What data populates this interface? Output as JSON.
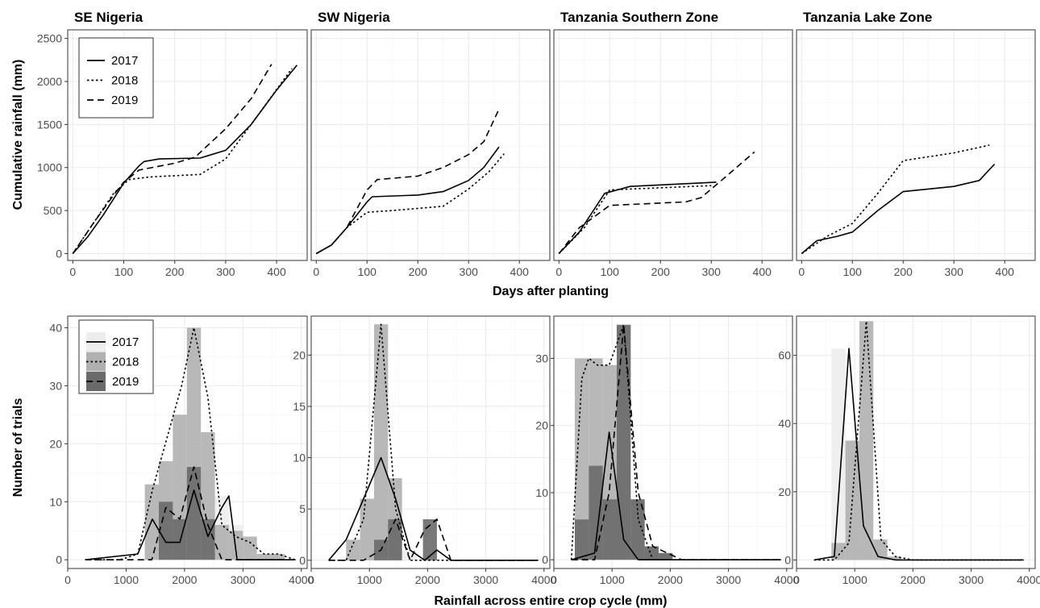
{
  "axis_labels": {
    "top_y": "Cumulative rainfall (mm)",
    "top_x": "Days after planting",
    "bottom_y": "Number of trials",
    "bottom_x": "Rainfall across entire crop cycle (mm)"
  },
  "legend": {
    "top": [
      "2017",
      "2018",
      "2019"
    ],
    "bottom": [
      "2017",
      "2018",
      "2019"
    ]
  },
  "colors": {
    "hist_2017": "#ededed",
    "hist_2018": "#b0b0b0",
    "hist_2019": "#6a6a6a",
    "grid": "#ebebeb",
    "panel_border": "#333333",
    "line": "#000000"
  },
  "chart_data": [
    {
      "panel": "SE Nigeria",
      "type": "line",
      "title": "SE Nigeria",
      "xlabel": "Days after planting",
      "ylabel": "Cumulative rainfall (mm)",
      "xlim": [
        -10,
        460
      ],
      "ylim": [
        -80,
        2600
      ],
      "xticks": [
        0,
        100,
        200,
        300,
        400
      ],
      "yticks": [
        0,
        500,
        1000,
        1500,
        2000,
        2500
      ],
      "grid": true,
      "legend_position": "top-left",
      "series": [
        {
          "name": "2017",
          "style": "solid",
          "x": [
            0,
            30,
            60,
            100,
            130,
            140,
            170,
            250,
            300,
            350,
            400,
            440
          ],
          "y": [
            0,
            200,
            450,
            820,
            1020,
            1070,
            1100,
            1110,
            1200,
            1500,
            1900,
            2190
          ]
        },
        {
          "name": "2018",
          "style": "dotted",
          "x": [
            0,
            40,
            80,
            110,
            150,
            250,
            300,
            350,
            430
          ],
          "y": [
            0,
            350,
            700,
            860,
            890,
            920,
            1100,
            1500,
            2150
          ]
        },
        {
          "name": "2019",
          "style": "dashed",
          "x": [
            0,
            40,
            80,
            100,
            130,
            200,
            240,
            300,
            350,
            390
          ],
          "y": [
            0,
            350,
            680,
            830,
            970,
            1050,
            1120,
            1450,
            1800,
            2200
          ]
        }
      ]
    },
    {
      "panel": "SW Nigeria",
      "type": "line",
      "title": "SW Nigeria",
      "xlim": [
        -10,
        460
      ],
      "ylim": [
        -80,
        2600
      ],
      "xticks": [
        0,
        100,
        200,
        300,
        400
      ],
      "yticks": [
        0,
        500,
        1000,
        1500,
        2000,
        2500
      ],
      "grid": true,
      "series": [
        {
          "name": "2017",
          "style": "solid",
          "x": [
            0,
            30,
            60,
            100,
            110,
            200,
            250,
            300,
            330,
            360
          ],
          "y": [
            0,
            100,
            300,
            600,
            660,
            680,
            720,
            850,
            1000,
            1240
          ]
        },
        {
          "name": "2018",
          "style": "dotted",
          "x": [
            0,
            30,
            60,
            100,
            150,
            250,
            300,
            340,
            370
          ],
          "y": [
            0,
            100,
            300,
            480,
            500,
            550,
            750,
            950,
            1160
          ]
        },
        {
          "name": "2019",
          "style": "dashed",
          "x": [
            0,
            30,
            60,
            100,
            120,
            200,
            250,
            300,
            330,
            360
          ],
          "y": [
            0,
            100,
            300,
            740,
            860,
            900,
            1000,
            1150,
            1300,
            1680
          ]
        }
      ]
    },
    {
      "panel": "Tanzania Southern Zone",
      "type": "line",
      "title": "Tanzania Southern Zone",
      "xlim": [
        -10,
        460
      ],
      "ylim": [
        -80,
        2600
      ],
      "xticks": [
        0,
        100,
        200,
        300,
        400
      ],
      "yticks": [
        0,
        500,
        1000,
        1500,
        2000,
        2500
      ],
      "grid": true,
      "series": [
        {
          "name": "2017",
          "style": "solid",
          "x": [
            0,
            40,
            90,
            140,
            310
          ],
          "y": [
            0,
            250,
            700,
            780,
            830
          ]
        },
        {
          "name": "2018",
          "style": "dotted",
          "x": [
            0,
            50,
            100,
            300
          ],
          "y": [
            0,
            300,
            740,
            790
          ]
        },
        {
          "name": "2019",
          "style": "dashed",
          "x": [
            0,
            40,
            100,
            250,
            280,
            320,
            385
          ],
          "y": [
            0,
            300,
            560,
            600,
            650,
            850,
            1180
          ]
        }
      ]
    },
    {
      "panel": "Tanzania Lake Zone",
      "type": "line",
      "title": "Tanzania Lake Zone",
      "xlim": [
        -10,
        460
      ],
      "ylim": [
        -80,
        2600
      ],
      "xticks": [
        0,
        100,
        200,
        300,
        400
      ],
      "yticks": [
        0,
        500,
        1000,
        1500,
        2000,
        2500
      ],
      "grid": true,
      "series": [
        {
          "name": "2017",
          "style": "solid",
          "x": [
            0,
            30,
            70,
            100,
            150,
            200,
            300,
            350,
            380
          ],
          "y": [
            0,
            150,
            200,
            250,
            500,
            720,
            780,
            850,
            1040
          ]
        },
        {
          "name": "2018",
          "style": "dotted",
          "x": [
            0,
            50,
            100,
            150,
            200,
            300,
            370
          ],
          "y": [
            0,
            200,
            350,
            700,
            1080,
            1170,
            1260
          ]
        }
      ]
    },
    {
      "panel": "SE Nigeria",
      "type": "bar",
      "xlabel": "Rainfall across entire crop cycle (mm)",
      "ylabel": "Number of trials",
      "xlim": [
        0,
        4100
      ],
      "ylim": [
        -1.5,
        42
      ],
      "xticks": [
        0,
        1000,
        2000,
        3000,
        4000
      ],
      "yticks": [
        0,
        10,
        20,
        30,
        40
      ],
      "grid": true,
      "legend_position": "top-left",
      "bin_width": 240,
      "series": [
        {
          "name": "2017",
          "bins": [
            1440,
            1680,
            1920,
            2160,
            2400,
            2640,
            2880
          ],
          "values": [
            7,
            10,
            2,
            12,
            4,
            11,
            6
          ]
        },
        {
          "name": "2018",
          "bins": [
            1440,
            1680,
            1920,
            2160,
            2400,
            2640,
            2880,
            3120,
            3360,
            3600
          ],
          "values": [
            13,
            17,
            25,
            40,
            22,
            6,
            5,
            4,
            1,
            1
          ]
        },
        {
          "name": "2019",
          "bins": [
            1680,
            1920,
            2160,
            2400
          ],
          "values": [
            10,
            7,
            16,
            7
          ]
        }
      ],
      "lines": [
        {
          "name": "2017",
          "style": "solid",
          "x": [
            300,
            1200,
            1450,
            1680,
            1920,
            2160,
            2400,
            2640,
            2760,
            2900,
            3300,
            3900
          ],
          "y": [
            0,
            1,
            7,
            3,
            3,
            12,
            4,
            9,
            11,
            0,
            0,
            0
          ]
        },
        {
          "name": "2018",
          "style": "dotted",
          "x": [
            300,
            900,
            1200,
            1450,
            1700,
            1950,
            2160,
            2400,
            2640,
            2880,
            3120,
            3360,
            3600,
            3900
          ],
          "y": [
            0,
            0,
            1,
            12,
            21,
            30,
            40,
            28,
            6,
            4,
            3,
            1,
            1,
            0
          ]
        },
        {
          "name": "2019",
          "style": "dashed",
          "x": [
            300,
            1200,
            1440,
            1680,
            1920,
            2160,
            2400,
            2640,
            2880,
            3900
          ],
          "y": [
            0,
            0,
            0,
            9,
            7,
            16,
            6,
            0,
            0,
            0
          ]
        }
      ]
    },
    {
      "panel": "SW Nigeria",
      "type": "bar",
      "xlim": [
        0,
        4100
      ],
      "ylim": [
        -0.8,
        23.8
      ],
      "xticks": [
        0,
        1000,
        2000,
        3000,
        4000
      ],
      "yticks": [
        0,
        5,
        10,
        15,
        20
      ],
      "grid": true,
      "bin_width": 240,
      "series": [
        {
          "name": "2017",
          "bins": [
            720,
            960,
            1200,
            1440,
            1680
          ],
          "values": [
            2,
            6,
            10,
            4,
            1
          ]
        },
        {
          "name": "2018",
          "bins": [
            720,
            960,
            1200,
            1440,
            1680
          ],
          "values": [
            2,
            6,
            23,
            8,
            0
          ]
        },
        {
          "name": "2019",
          "bins": [
            1200,
            1440,
            2040
          ],
          "values": [
            2,
            4,
            4
          ]
        }
      ],
      "lines": [
        {
          "name": "2017",
          "style": "solid",
          "x": [
            300,
            600,
            900,
            1200,
            1450,
            1700,
            1950,
            2160,
            2400,
            3900
          ],
          "y": [
            0,
            2,
            6,
            10,
            6,
            1,
            0,
            1,
            0,
            0
          ]
        },
        {
          "name": "2018",
          "style": "dotted",
          "x": [
            300,
            600,
            900,
            1200,
            1450,
            1700,
            3900
          ],
          "y": [
            0,
            0,
            4,
            23,
            5,
            0,
            0
          ]
        },
        {
          "name": "2019",
          "style": "dashed",
          "x": [
            300,
            900,
            1200,
            1450,
            1700,
            1950,
            2160,
            2400,
            3900
          ],
          "y": [
            0,
            0,
            1,
            4,
            0,
            3,
            4,
            0,
            0
          ]
        }
      ]
    },
    {
      "panel": "Tanzania Southern Zone",
      "type": "bar",
      "xlim": [
        0,
        4100
      ],
      "ylim": [
        -1.3,
        36.3
      ],
      "xticks": [
        0,
        1000,
        2000,
        3000,
        4000
      ],
      "yticks": [
        0,
        10,
        20,
        30
      ],
      "grid": true,
      "bin_width": 240,
      "series": [
        {
          "name": "2017",
          "bins": [
            480,
            720,
            960,
            1200
          ],
          "values": [
            6,
            14,
            17,
            4
          ]
        },
        {
          "name": "2018",
          "bins": [
            480,
            720,
            960,
            1200,
            1440,
            1680,
            1920,
            2160
          ],
          "values": [
            30,
            30,
            29,
            35,
            9,
            2,
            1,
            0
          ]
        },
        {
          "name": "2019",
          "bins": [
            480,
            720,
            960,
            1200,
            1440,
            1680,
            1920,
            2160
          ],
          "values": [
            6,
            14,
            9,
            35,
            9,
            2,
            1,
            0
          ]
        }
      ],
      "lines": [
        {
          "name": "2017",
          "style": "solid",
          "x": [
            300,
            700,
            950,
            1200,
            1450,
            1700,
            3900
          ],
          "y": [
            0,
            1,
            19,
            3,
            0,
            0,
            0
          ]
        },
        {
          "name": "2018",
          "style": "dotted",
          "x": [
            300,
            480,
            600,
            750,
            950,
            1200,
            1450,
            1700,
            3900
          ],
          "y": [
            0,
            27,
            30,
            29,
            29,
            35,
            6,
            0,
            0
          ]
        },
        {
          "name": "2019",
          "style": "dashed",
          "x": [
            300,
            700,
            950,
            1200,
            1450,
            1700,
            1950,
            2200,
            2400,
            3900
          ],
          "y": [
            0,
            0,
            10,
            35,
            10,
            2,
            1,
            0,
            0,
            0
          ]
        }
      ]
    },
    {
      "panel": "Tanzania Lake Zone",
      "type": "bar",
      "xlim": [
        0,
        4100
      ],
      "ylim": [
        -2.5,
        71.5
      ],
      "xticks": [
        0,
        1000,
        2000,
        3000,
        4000
      ],
      "yticks": [
        0,
        20,
        40,
        60
      ],
      "grid": true,
      "bin_width": 240,
      "series": [
        {
          "name": "2017",
          "bins": [
            720,
            960,
            1200,
            1440
          ],
          "values": [
            62,
            35,
            5,
            1
          ]
        },
        {
          "name": "2018",
          "bins": [
            720,
            960,
            1200,
            1440,
            1680
          ],
          "values": [
            5,
            35,
            70,
            6,
            1
          ]
        }
      ],
      "lines": [
        {
          "name": "2017",
          "style": "solid",
          "x": [
            300,
            650,
            900,
            1150,
            1400,
            1700,
            3900
          ],
          "y": [
            0,
            1,
            62,
            10,
            1,
            0,
            0
          ]
        },
        {
          "name": "2018",
          "style": "dotted",
          "x": [
            300,
            650,
            900,
            1200,
            1450,
            1700,
            2000,
            3900
          ],
          "y": [
            0,
            0,
            5,
            70,
            6,
            1,
            0,
            0
          ]
        }
      ]
    }
  ]
}
